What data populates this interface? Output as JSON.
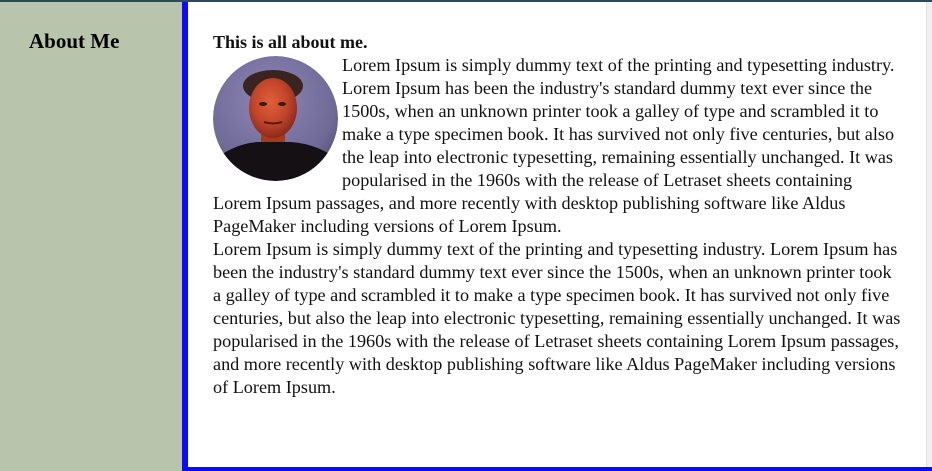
{
  "sidebar": {
    "title": "About Me"
  },
  "main": {
    "heading": "This is all about me.",
    "paragraph_1": "Lorem Ipsum is simply dummy text of the printing and typesetting industry. Lorem Ipsum has been the industry's standard dummy text ever since the 1500s, when an unknown printer took a galley of type and scrambled it to make a type specimen book. It has survived not only five centuries, but also the leap into electronic typesetting, remaining essentially unchanged. It was popularised in the 1960s with the release of Letraset sheets containing Lorem Ipsum passages, and more recently with desktop publishing software like Aldus PageMaker including versions of Lorem Ipsum.",
    "paragraph_2": "Lorem Ipsum is simply dummy text of the printing and typesetting industry. Lorem Ipsum has been the industry's standard dummy text ever since the 1500s, when an unknown printer took a galley of type and scrambled it to make a type specimen book. It has survived not only five centuries, but also the leap into electronic typesetting, remaining essentially unchanged. It was popularised in the 1960s with the release of Letraset sheets containing Lorem Ipsum passages, and more recently with desktop publishing software like Aldus PageMaker including versions of Lorem Ipsum.",
    "photo_icon": "profile-photo"
  },
  "colors": {
    "sidebar_bg": "#b8c4ac",
    "accent_border": "#0a0aff",
    "top_border": "#2e4a5a"
  }
}
